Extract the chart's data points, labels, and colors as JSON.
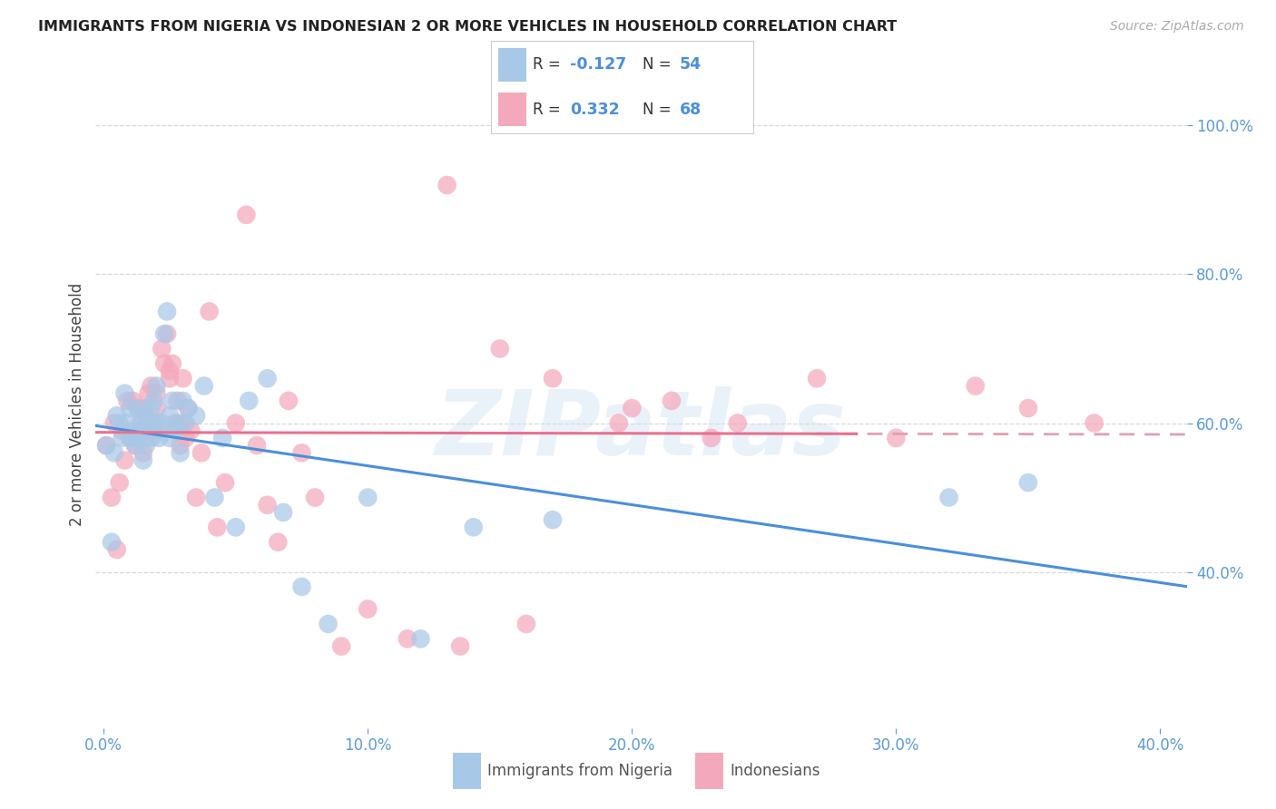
{
  "title": "IMMIGRANTS FROM NIGERIA VS INDONESIAN 2 OR MORE VEHICLES IN HOUSEHOLD CORRELATION CHART",
  "source": "Source: ZipAtlas.com",
  "ylabel": "2 or more Vehicles in Household",
  "xlim": [
    -0.003,
    0.41
  ],
  "ylim": [
    0.19,
    1.06
  ],
  "legend1_r": "-0.127",
  "legend1_n": "54",
  "legend2_r": "0.332",
  "legend2_n": "68",
  "color_nigeria": "#a8c8e8",
  "color_indonesia": "#f4a8bc",
  "color_nigeria_line": "#4a90d9",
  "color_indonesia_line": "#e87090",
  "color_trendline_dashed": "#e0a0b0",
  "watermark": "ZIPatlas",
  "nigeria_x": [
    0.001,
    0.003,
    0.004,
    0.005,
    0.006,
    0.007,
    0.008,
    0.009,
    0.01,
    0.01,
    0.011,
    0.012,
    0.013,
    0.013,
    0.014,
    0.015,
    0.015,
    0.016,
    0.016,
    0.017,
    0.018,
    0.018,
    0.019,
    0.02,
    0.02,
    0.021,
    0.022,
    0.023,
    0.024,
    0.025,
    0.025,
    0.026,
    0.027,
    0.028,
    0.029,
    0.03,
    0.031,
    0.032,
    0.035,
    0.038,
    0.042,
    0.045,
    0.05,
    0.055,
    0.062,
    0.068,
    0.075,
    0.085,
    0.1,
    0.12,
    0.14,
    0.17,
    0.32,
    0.35
  ],
  "nigeria_y": [
    0.57,
    0.44,
    0.56,
    0.61,
    0.6,
    0.58,
    0.64,
    0.6,
    0.58,
    0.62,
    0.59,
    0.57,
    0.62,
    0.58,
    0.6,
    0.59,
    0.55,
    0.61,
    0.57,
    0.6,
    0.62,
    0.58,
    0.63,
    0.6,
    0.65,
    0.58,
    0.6,
    0.72,
    0.75,
    0.61,
    0.58,
    0.63,
    0.59,
    0.6,
    0.56,
    0.63,
    0.6,
    0.62,
    0.61,
    0.65,
    0.5,
    0.58,
    0.46,
    0.63,
    0.66,
    0.48,
    0.38,
    0.33,
    0.5,
    0.31,
    0.46,
    0.47,
    0.5,
    0.52
  ],
  "indonesia_x": [
    0.001,
    0.003,
    0.004,
    0.005,
    0.006,
    0.007,
    0.008,
    0.009,
    0.01,
    0.011,
    0.012,
    0.013,
    0.014,
    0.015,
    0.015,
    0.016,
    0.017,
    0.018,
    0.019,
    0.02,
    0.021,
    0.022,
    0.023,
    0.024,
    0.025,
    0.026,
    0.027,
    0.028,
    0.029,
    0.03,
    0.031,
    0.032,
    0.033,
    0.035,
    0.037,
    0.04,
    0.043,
    0.046,
    0.05,
    0.054,
    0.058,
    0.062,
    0.066,
    0.07,
    0.075,
    0.08,
    0.09,
    0.1,
    0.115,
    0.13,
    0.15,
    0.17,
    0.195,
    0.215,
    0.24,
    0.27,
    0.3,
    0.33,
    0.35,
    0.375,
    0.135,
    0.16,
    0.2,
    0.23,
    0.015,
    0.02,
    0.025,
    0.03
  ],
  "indonesia_y": [
    0.57,
    0.5,
    0.6,
    0.43,
    0.52,
    0.59,
    0.55,
    0.63,
    0.58,
    0.63,
    0.57,
    0.62,
    0.59,
    0.56,
    0.61,
    0.58,
    0.64,
    0.65,
    0.6,
    0.62,
    0.59,
    0.7,
    0.68,
    0.72,
    0.66,
    0.68,
    0.6,
    0.63,
    0.57,
    0.66,
    0.58,
    0.62,
    0.59,
    0.5,
    0.56,
    0.75,
    0.46,
    0.52,
    0.6,
    0.88,
    0.57,
    0.49,
    0.44,
    0.63,
    0.56,
    0.5,
    0.3,
    0.35,
    0.31,
    0.92,
    0.7,
    0.66,
    0.6,
    0.63,
    0.6,
    0.66,
    0.58,
    0.65,
    0.62,
    0.6,
    0.3,
    0.33,
    0.62,
    0.58,
    0.62,
    0.64,
    0.67,
    0.6
  ],
  "background_color": "#ffffff",
  "grid_color": "#d8d8d8",
  "title_color": "#222222",
  "axis_tick_color": "#5b9bd5",
  "ylabel_color": "#444444",
  "legend_border_color": "#cccccc",
  "bottom_legend_text_color": "#555555"
}
